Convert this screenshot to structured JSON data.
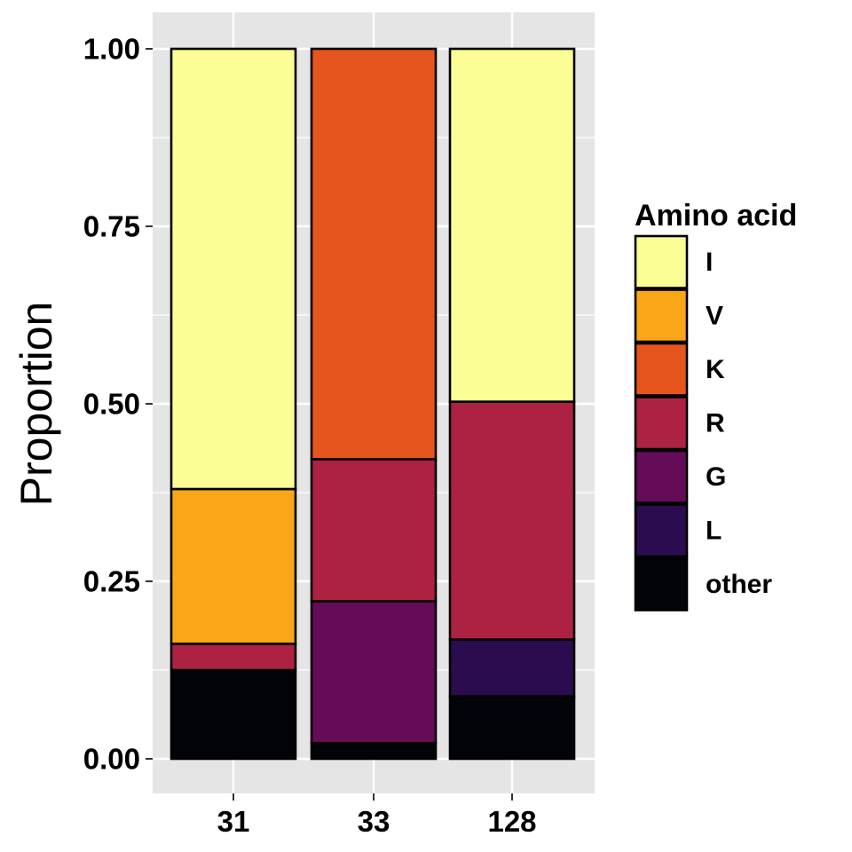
{
  "chart_data": {
    "type": "bar",
    "stacked": true,
    "title": "",
    "xlabel": "",
    "ylabel": "Proportion",
    "ylim": [
      0,
      1
    ],
    "y_ticks": [
      "0.00",
      "0.25",
      "0.50",
      "0.75",
      "1.00"
    ],
    "categories": [
      "31",
      "33",
      "128"
    ],
    "grid": true,
    "legend_position": "right",
    "legend_title": "Amino acid",
    "series": [
      {
        "name": "other",
        "color": "#03030a",
        "values": [
          0.125,
          0.022,
          0.088
        ]
      },
      {
        "name": "L",
        "color": "#2a0c4f",
        "values": [
          0.0,
          0.0,
          0.08
        ]
      },
      {
        "name": "G",
        "color": "#640c58",
        "values": [
          0.0,
          0.2,
          0.0
        ]
      },
      {
        "name": "R",
        "color": "#ad2242",
        "values": [
          0.037,
          0.2,
          0.335
        ]
      },
      {
        "name": "K",
        "color": "#e6551d",
        "values": [
          0.0,
          0.578,
          0.0
        ]
      },
      {
        "name": "V",
        "color": "#f9a719",
        "values": [
          0.218,
          0.0,
          0.0
        ]
      },
      {
        "name": "I",
        "color": "#fbfd95",
        "values": [
          0.62,
          0.0,
          0.497
        ]
      }
    ],
    "legend_order": [
      "I",
      "V",
      "K",
      "R",
      "G",
      "L",
      "other"
    ]
  },
  "colors": {
    "panel_background": "#e5e5e5",
    "grid_line": "#ffffff",
    "bar_outline": "#000000"
  }
}
